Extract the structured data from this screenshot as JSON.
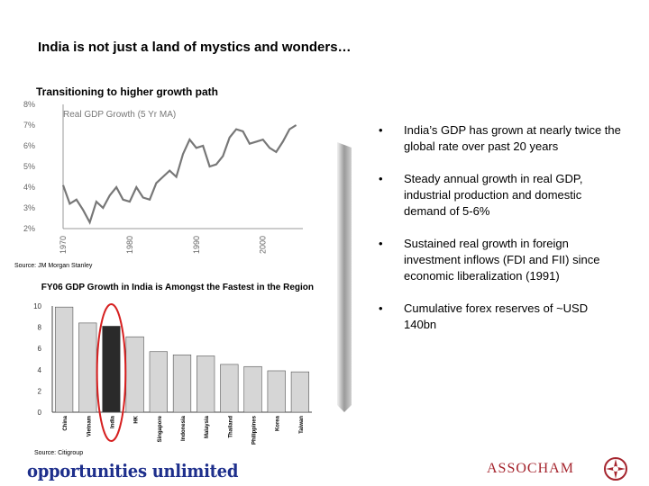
{
  "slide": {
    "title": "India is not just a land of mystics and wonders…",
    "line_chart_title": "Transitioning to higher growth path",
    "line_chart_source": "Source: JM Morgan Stanley",
    "bar_chart_title": "FY06 GDP Growth in India is Amongst the Fastest in the Region",
    "bar_chart_source": "Source: Citigroup",
    "bullets": [
      "India’s GDP has grown at nearly twice the global rate over past 20 years",
      "Steady annual growth in real GDP, industrial production and domestic demand of 5-6%",
      "Sustained real growth in foreign investment inflows (FDI and FII) since economic liberalization (1991)",
      "Cumulative forex reserves of ~USD 140bn"
    ],
    "footer_logo": "opportunities unlimited",
    "footer_brand": "ASSOCHAM"
  },
  "chart_data": [
    {
      "type": "line",
      "title": "Transitioning to higher growth path",
      "legend": "Real GDP Growth (5 Yr MA)",
      "x": [
        1970,
        1971,
        1972,
        1973,
        1974,
        1975,
        1976,
        1977,
        1978,
        1979,
        1980,
        1981,
        1982,
        1983,
        1984,
        1985,
        1986,
        1987,
        1988,
        1989,
        1990,
        1991,
        1992,
        1993,
        1994,
        1995,
        1996,
        1997,
        1998,
        1999,
        2000,
        2001,
        2002,
        2003,
        2004,
        2005
      ],
      "y": [
        4.1,
        3.2,
        3.4,
        2.9,
        2.3,
        3.3,
        3.0,
        3.6,
        4.0,
        3.4,
        3.3,
        4.0,
        3.5,
        3.4,
        4.2,
        4.5,
        4.8,
        4.5,
        5.6,
        6.3,
        5.9,
        6.0,
        5.0,
        5.1,
        5.5,
        6.4,
        6.8,
        6.7,
        6.1,
        6.2,
        6.3,
        5.9,
        5.7,
        6.2,
        6.8,
        7.0
      ],
      "ylim": [
        2,
        8
      ],
      "yticks": [
        "2%",
        "3%",
        "4%",
        "5%",
        "6%",
        "7%",
        "8%"
      ],
      "xticks": [
        "1970",
        "1980",
        "1990",
        "2000"
      ]
    },
    {
      "type": "bar",
      "title": "FY06 GDP Growth in India is Amongst the Fastest in the Region",
      "categories": [
        "China",
        "Vietnam",
        "India",
        "HK",
        "Singapore",
        "Indonesia",
        "Malaysia",
        "Thailand",
        "Philippines",
        "Korea",
        "Taiwan"
      ],
      "values": [
        9.9,
        8.4,
        8.1,
        7.1,
        5.7,
        5.4,
        5.3,
        4.5,
        4.3,
        3.9,
        3.8
      ],
      "highlight": "India",
      "ylim": [
        0,
        10
      ],
      "yticks": [
        "0",
        "2",
        "4",
        "6",
        "8",
        "10"
      ],
      "colors": {
        "bar": "#d6d6d6",
        "highlight_bar": "#2a2a2a",
        "circle": "#d62020"
      }
    }
  ]
}
